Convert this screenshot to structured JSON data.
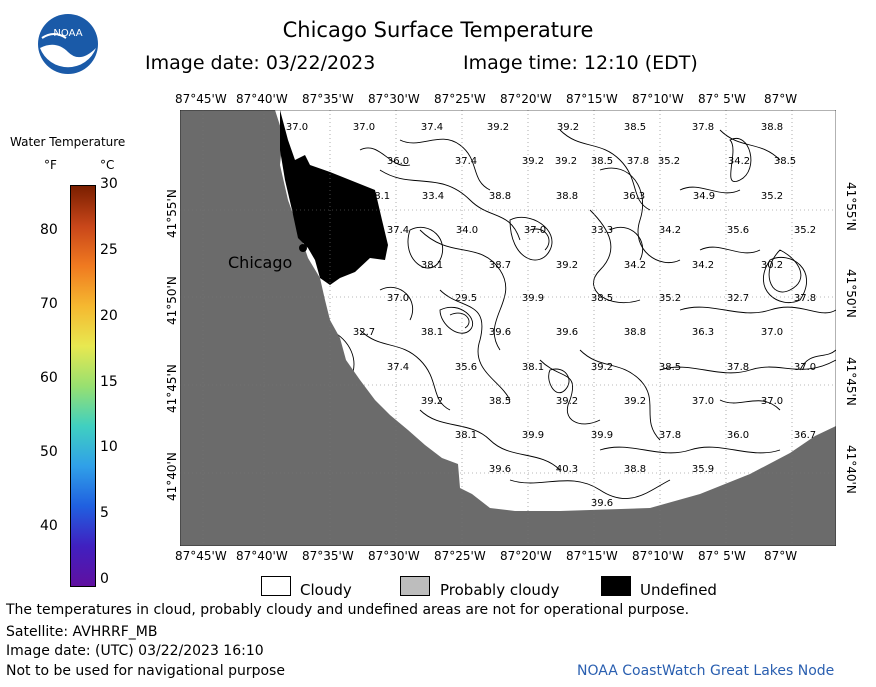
{
  "header": {
    "title": "Chicago Surface Temperature",
    "image_date": "Image date: 03/22/2023",
    "image_time": "Image time: 12:10 (EDT)"
  },
  "logo": {
    "text": "NOAA"
  },
  "colorbar": {
    "title": "Water Temperature",
    "unit_f": "°F",
    "unit_c": "°C",
    "f_ticks": [
      "80",
      "70",
      "60",
      "50",
      "40"
    ],
    "c_ticks": [
      "30",
      "25",
      "20",
      "15",
      "10",
      "5",
      "0"
    ],
    "colors": [
      "#7a1f00",
      "#c8461a",
      "#f07a20",
      "#f5b830",
      "#e8e850",
      "#98e070",
      "#40d0c0",
      "#30a0e8",
      "#2060e0",
      "#4020c0",
      "#6010a0"
    ]
  },
  "map": {
    "city_label": "Chicago",
    "lon_labels": [
      "87°45'W",
      "87°40'W",
      "87°35'W",
      "87°30'W",
      "87°25'W",
      "87°20'W",
      "87°15'W",
      "87°10'W",
      "87° 5'W",
      "87°W"
    ],
    "lat_labels": [
      "41°55'N",
      "41°50'N",
      "41°45'N",
      "41°40'N"
    ],
    "temperature_labels": [
      "37.0",
      "37.0",
      "37.4",
      "39.2",
      "39.2",
      "38.5",
      "37.8",
      "38.8",
      "39.2",
      "36.0",
      "37.4",
      "39.2",
      "38.5",
      "35.2",
      "34.2",
      "38.5",
      "38.1",
      "33.4",
      "38.8",
      "38.8",
      "36.3",
      "34.9",
      "35.2",
      "37.8",
      "34.0",
      "37.0",
      "33.3",
      "34.2",
      "35.6",
      "35.2",
      "37.4",
      "38.1",
      "38.7",
      "39.2",
      "34.2",
      "34.2",
      "30.2",
      "37.0",
      "29.5",
      "39.9",
      "38.5",
      "35.2",
      "32.7",
      "37.8",
      "32.7",
      "38.1",
      "39.6",
      "39.6",
      "38.8",
      "36.3",
      "37.0",
      "37.4",
      "35.6",
      "38.1",
      "39.2",
      "38.5",
      "37.8",
      "37.0",
      "39.2",
      "38.5",
      "39.2",
      "39.2",
      "37.0",
      "37.0",
      "38.1",
      "39.9",
      "39.9",
      "37.8",
      "36.0",
      "36.7",
      "39.6",
      "40.3",
      "38.8",
      "35.9",
      "39.6"
    ]
  },
  "legend": {
    "cloudy": "Cloudy",
    "probably_cloudy": "Probably cloudy",
    "undefined": "Undefined"
  },
  "footer": {
    "note": "The temperatures in cloud, probably cloudy and undefined areas are not for operational purpose.",
    "satellite": "Satellite: AVHRRF_MB",
    "utc_date": "Image date: (UTC) 03/22/2023  16:10",
    "nav_warning": "Not to be used for navigational purpose",
    "credit": "NOAA CoastWatch Great Lakes Node"
  }
}
